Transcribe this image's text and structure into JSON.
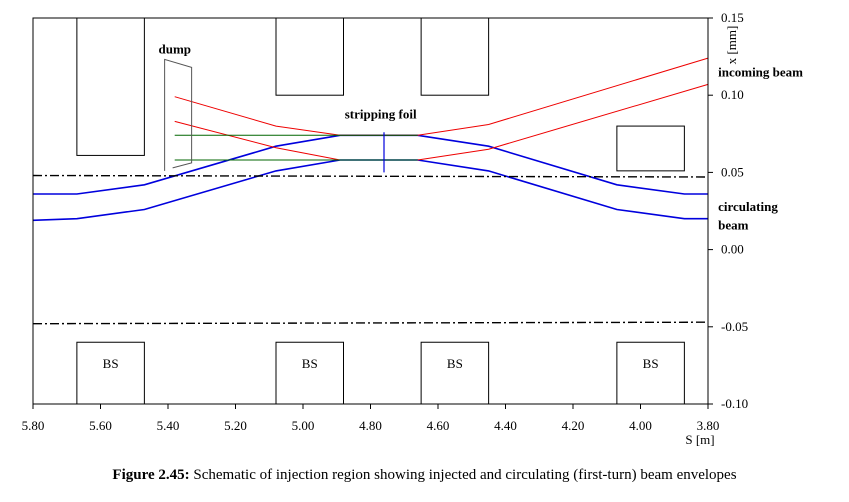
{
  "chart_data": {
    "type": "line",
    "xlabel": "S [m]",
    "ylabel": "x [mm]",
    "xlim": [
      5.8,
      3.8
    ],
    "ylim": [
      -0.1,
      0.15
    ],
    "x_reversed": true,
    "x_ticks": [
      "5.80",
      "5.60",
      "5.40",
      "5.20",
      "5.00",
      "4.80",
      "4.60",
      "4.40",
      "4.20",
      "4.00",
      "3.80"
    ],
    "y_ticks": [
      "0.15",
      "0.10",
      "0.05",
      "0.00",
      "-0.05",
      "-0.10"
    ],
    "y_axis_side": "right",
    "series": [
      {
        "role": "circulating",
        "color": "#0000dd",
        "points": [
          [
            5.8,
            0.036
          ],
          [
            5.67,
            0.036
          ],
          [
            5.47,
            0.042
          ],
          [
            5.08,
            0.067
          ],
          [
            4.89,
            0.074
          ],
          [
            4.66,
            0.074
          ],
          [
            4.45,
            0.067
          ],
          [
            4.07,
            0.042
          ],
          [
            3.87,
            0.036
          ],
          [
            3.8,
            0.036
          ]
        ]
      },
      {
        "role": "circulating",
        "color": "#0000dd",
        "points": [
          [
            5.8,
            0.019
          ],
          [
            5.67,
            0.02
          ],
          [
            5.47,
            0.026
          ],
          [
            5.08,
            0.051
          ],
          [
            4.89,
            0.058
          ],
          [
            4.66,
            0.058
          ],
          [
            4.45,
            0.051
          ],
          [
            4.07,
            0.026
          ],
          [
            3.87,
            0.02
          ],
          [
            3.8,
            0.02
          ]
        ]
      },
      {
        "role": "incoming",
        "color": "#ee0000",
        "points": [
          [
            5.38,
            0.099
          ],
          [
            5.08,
            0.08
          ],
          [
            4.89,
            0.074
          ],
          [
            4.66,
            0.074
          ],
          [
            4.45,
            0.081
          ],
          [
            3.8,
            0.124
          ]
        ]
      },
      {
        "role": "incoming",
        "color": "#ee0000",
        "points": [
          [
            5.38,
            0.083
          ],
          [
            5.08,
            0.066
          ],
          [
            4.89,
            0.058
          ],
          [
            4.66,
            0.058
          ],
          [
            4.45,
            0.065
          ],
          [
            3.8,
            0.107
          ]
        ]
      },
      {
        "role": "incoming-straight",
        "color": "#006600",
        "points": [
          [
            5.38,
            0.074
          ],
          [
            4.66,
            0.074
          ]
        ]
      },
      {
        "role": "incoming-straight",
        "color": "#006600",
        "points": [
          [
            5.38,
            0.058
          ],
          [
            4.66,
            0.058
          ]
        ]
      },
      {
        "role": "aperture",
        "color": "#000000",
        "style": "dash-dot",
        "points": [
          [
            5.8,
            0.048
          ],
          [
            3.8,
            0.047
          ]
        ]
      },
      {
        "role": "aperture",
        "color": "#000000",
        "style": "dash-dot",
        "points": [
          [
            5.8,
            -0.048
          ],
          [
            3.8,
            -0.047
          ]
        ]
      }
    ],
    "magnets": [
      {
        "s": [
          5.67,
          5.47
        ],
        "x": [
          0.061,
          0.15
        ],
        "label": ""
      },
      {
        "s": [
          5.08,
          4.88
        ],
        "x": [
          0.1,
          0.15
        ],
        "label": ""
      },
      {
        "s": [
          4.65,
          4.45
        ],
        "x": [
          0.1,
          0.15
        ],
        "label": ""
      },
      {
        "s": [
          4.07,
          3.87
        ],
        "x": [
          0.051,
          0.08
        ],
        "label": ""
      },
      {
        "s": [
          5.67,
          5.47
        ],
        "x": [
          -0.1,
          -0.06
        ],
        "label": "BS"
      },
      {
        "s": [
          5.08,
          4.88
        ],
        "x": [
          -0.1,
          -0.06
        ],
        "label": "BS"
      },
      {
        "s": [
          4.65,
          4.45
        ],
        "x": [
          -0.1,
          -0.06
        ],
        "label": "BS"
      },
      {
        "s": [
          4.07,
          3.87
        ],
        "x": [
          -0.1,
          -0.06
        ],
        "label": "BS"
      }
    ],
    "dump": {
      "s": [
        5.41,
        5.33
      ],
      "x": [
        0.051,
        0.118
      ]
    },
    "foil": {
      "s": 4.76,
      "x": [
        0.05,
        0.076
      ]
    },
    "annotations": [
      {
        "text": "dump",
        "s": 5.38,
        "x": 0.127
      },
      {
        "text": "stripping foil",
        "s": 4.77,
        "x": 0.085
      },
      {
        "text": "incoming beam",
        "s": 3.77,
        "x": 0.112
      },
      {
        "text": "circulating",
        "s": 3.77,
        "x": 0.025
      },
      {
        "text": "beam",
        "s": 3.77,
        "x": 0.013
      }
    ]
  },
  "caption": {
    "label": "Figure 2.45:",
    "text": " Schematic of injection region showing injected and circulating (first-turn) beam envelopes"
  }
}
